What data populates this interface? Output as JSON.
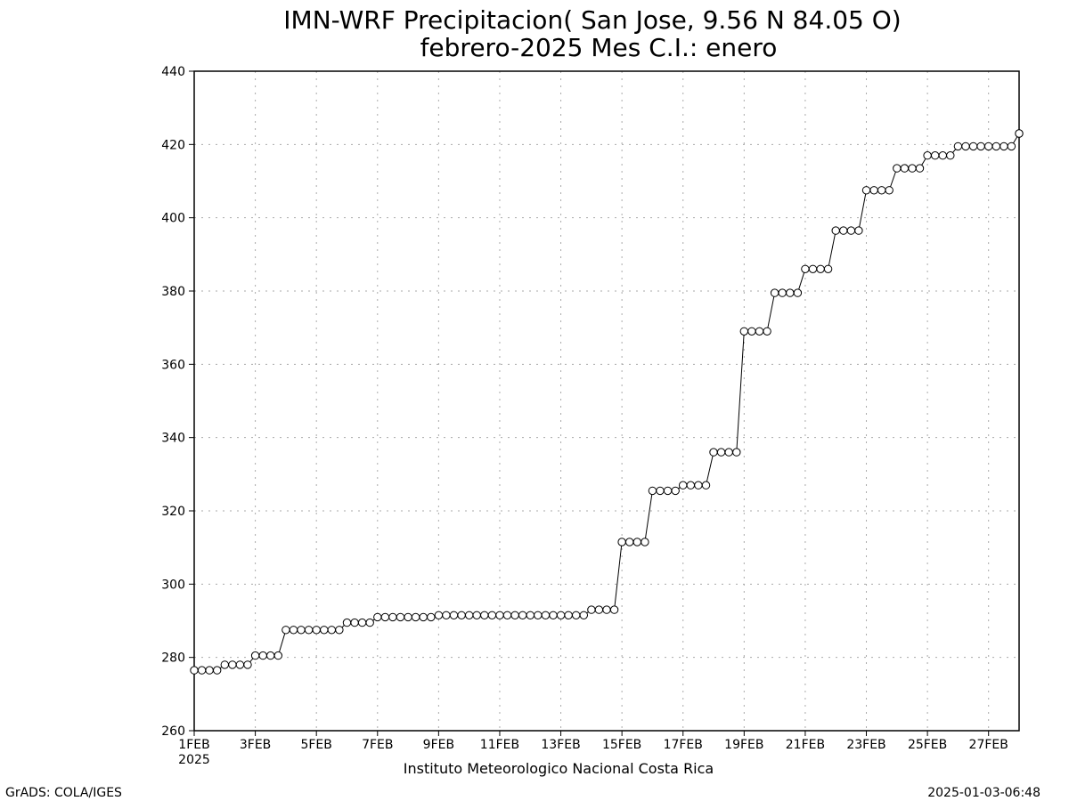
{
  "chart_data": {
    "type": "line",
    "title": "IMN-WRF  Precipitacion( San Jose, 9.56  N 84.05  O)",
    "subtitle": "febrero-2025 Mes C.I.: enero",
    "credit": "Instituto Meteorologico Nacional Costa Rica",
    "footer_left": "GrADS: COLA/IGES",
    "footer_right": "2025-01-03-06:48",
    "x_year_label": "2025",
    "xlim": [
      1,
      28
    ],
    "ylim": [
      260,
      440
    ],
    "y_ticks": [
      260,
      280,
      300,
      320,
      340,
      360,
      380,
      400,
      420,
      440
    ],
    "x_ticks": [
      {
        "day": 1,
        "label": "1FEB"
      },
      {
        "day": 3,
        "label": "3FEB"
      },
      {
        "day": 5,
        "label": "5FEB"
      },
      {
        "day": 7,
        "label": "7FEB"
      },
      {
        "day": 9,
        "label": "9FEB"
      },
      {
        "day": 11,
        "label": "11FEB"
      },
      {
        "day": 13,
        "label": "13FEB"
      },
      {
        "day": 15,
        "label": "15FEB"
      },
      {
        "day": 17,
        "label": "17FEB"
      },
      {
        "day": 19,
        "label": "19FEB"
      },
      {
        "day": 21,
        "label": "21FEB"
      },
      {
        "day": 23,
        "label": "23FEB"
      },
      {
        "day": 25,
        "label": "25FEB"
      },
      {
        "day": 27,
        "label": "27FEB"
      }
    ],
    "grid": true,
    "marker": "open-circle",
    "daily_values": [
      276.5,
      278,
      280.5,
      287.5,
      287.5,
      289.5,
      291,
      291,
      291.5,
      291.5,
      291.5,
      291.5,
      291.5,
      293,
      311.5,
      325.5,
      327,
      336,
      369,
      379.5,
      386,
      396.5,
      407.5,
      413.5,
      417,
      419.5,
      419.5,
      423
    ]
  }
}
